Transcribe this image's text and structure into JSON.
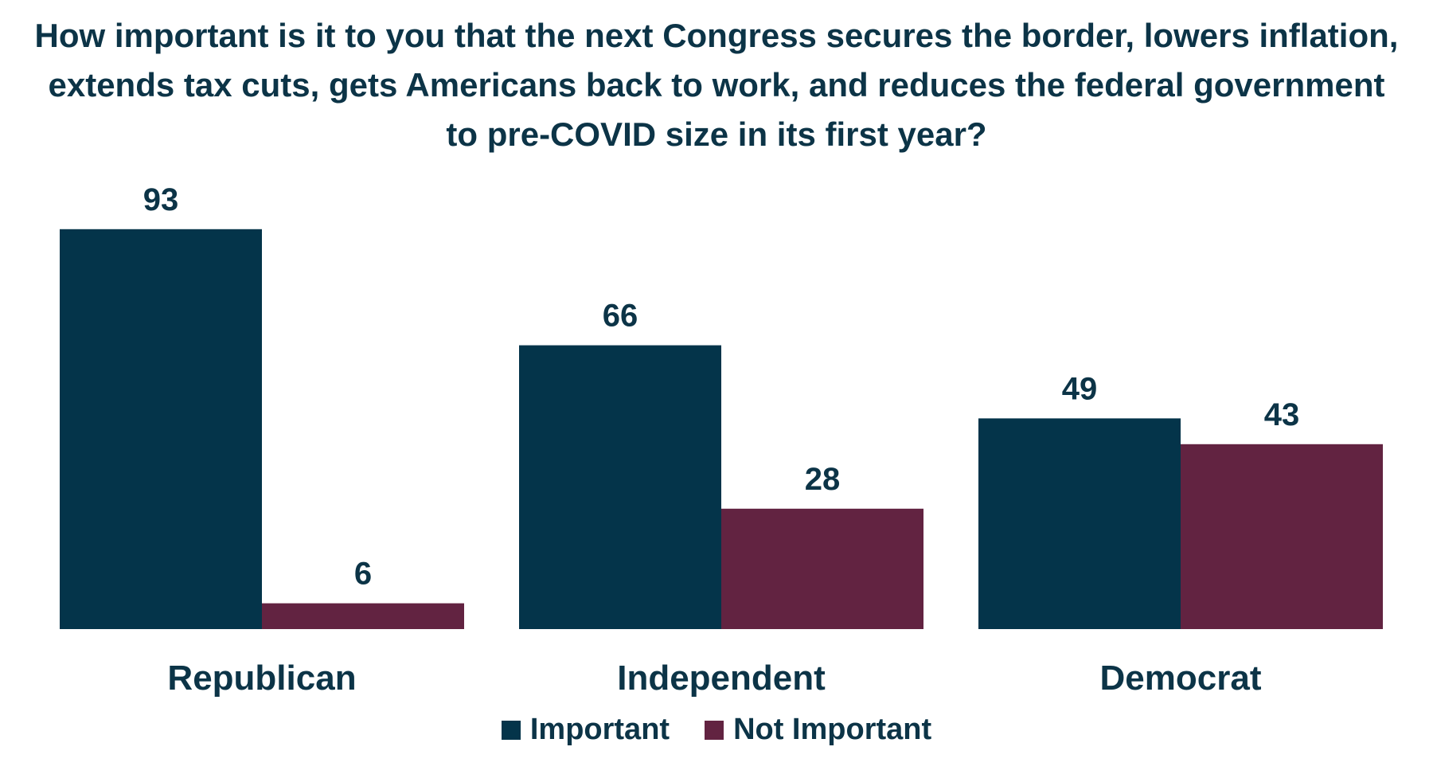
{
  "title_lines": [
    "How important is it to you that the next Congress secures the border, lowers inflation,",
    "extends tax cuts, gets Americans back to work, and reduces the federal government",
    "to pre-COVID size in its first year?"
  ],
  "colors": {
    "important": "#04344a",
    "not_important": "#622341",
    "text": "#0c3447"
  },
  "chart_data": {
    "type": "bar",
    "title": "How important is it to you that the next Congress secures the border, lowers inflation, extends tax cuts, gets Americans back to work, and reduces the federal government to pre-COVID size in its first year?",
    "categories": [
      "Republican",
      "Independent",
      "Democrat"
    ],
    "series": [
      {
        "name": "Important",
        "values": [
          93,
          66,
          49
        ]
      },
      {
        "name": "Not Important",
        "values": [
          6,
          28,
          43
        ]
      }
    ],
    "ylim": [
      0,
      100
    ],
    "grid": false,
    "legend_position": "bottom"
  }
}
